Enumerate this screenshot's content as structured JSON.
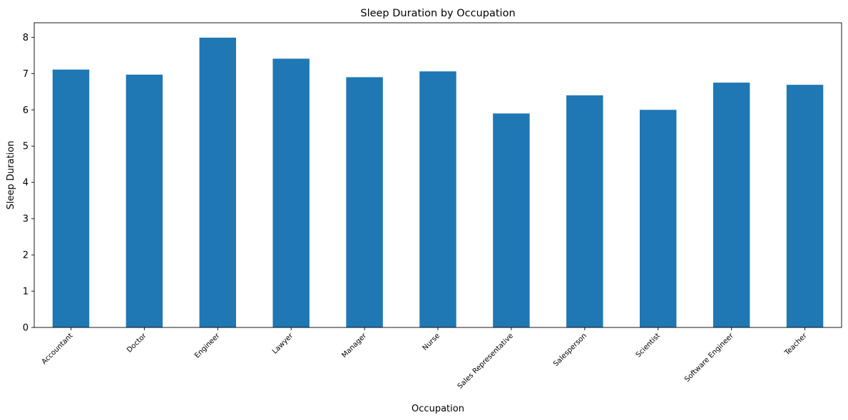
{
  "chart_data": {
    "type": "bar",
    "title": "Sleep Duration by Occupation",
    "xlabel": "Occupation",
    "ylabel": "Sleep Duration",
    "categories": [
      "Accountant",
      "Doctor",
      "Engineer",
      "Lawyer",
      "Manager",
      "Nurse",
      "Sales Representative",
      "Salesperson",
      "Scientist",
      "Software Engineer",
      "Teacher"
    ],
    "values": [
      7.11,
      6.97,
      7.99,
      7.41,
      6.9,
      7.06,
      5.9,
      6.4,
      6.0,
      6.75,
      6.69
    ],
    "ylim": [
      0,
      8.4
    ],
    "yticks": [
      "0",
      "1",
      "2",
      "3",
      "4",
      "5",
      "6",
      "7",
      "8"
    ],
    "bar_color": "#1f77b4",
    "grid": false,
    "legend": "none"
  }
}
